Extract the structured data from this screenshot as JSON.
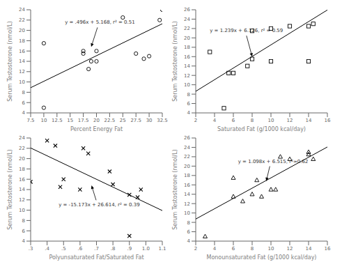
{
  "chart_data": [
    {
      "type": "scatter",
      "xlabel": "Percent Energy Fat",
      "ylabel": "Serum Testosterone (nmol/L)",
      "xlim": [
        7.5,
        32.5
      ],
      "ylim": [
        4,
        24
      ],
      "xticks": [
        7.5,
        10,
        12.5,
        15,
        17.5,
        20,
        22.5,
        25,
        27.5,
        30,
        32.5
      ],
      "yticks": [
        4,
        6,
        8,
        10,
        12,
        14,
        16,
        18,
        20,
        22,
        24
      ],
      "series": [
        {
          "type": "scatter",
          "marker": "circle",
          "color": "#000000",
          "x": [
            10,
            10,
            17.5,
            17.5,
            18.5,
            19,
            20,
            20,
            25,
            27.5,
            29,
            30,
            32,
            32.5
          ],
          "values": [
            17.5,
            5,
            15.5,
            16,
            12.5,
            14,
            14,
            16,
            22.5,
            15.5,
            14.5,
            15,
            22,
            24
          ]
        },
        {
          "type": "line",
          "line_style": "solid",
          "color": "#000000",
          "x": [
            7.5,
            32.5
          ],
          "values": [
            8.888,
            21.288
          ]
        }
      ],
      "annotations": [
        {
          "text": "y = .496x + 5.168, r² = 0.51",
          "x": 14.0,
          "y": 21.5,
          "arrow_x": 19.0,
          "arrow_y": 16.8
        }
      ]
    },
    {
      "type": "scatter",
      "xlabel": "Saturated Fat (g/1000 kcal/day)",
      "ylabel": "Serum Testosterone (nmol/L)",
      "xlim": [
        2,
        16
      ],
      "ylim": [
        4,
        26
      ],
      "xticks": [
        2,
        4,
        6,
        8,
        10,
        12,
        14,
        16
      ],
      "yticks": [
        4,
        6,
        8,
        10,
        12,
        14,
        16,
        18,
        20,
        22,
        24,
        26
      ],
      "series": [
        {
          "type": "scatter",
          "marker": "square",
          "color": "#000000",
          "x": [
            3.5,
            5,
            5.5,
            6,
            7.5,
            8,
            8,
            10,
            10,
            12,
            14,
            14,
            14.5
          ],
          "values": [
            17,
            5,
            12.5,
            12.5,
            14,
            15.5,
            21.5,
            15,
            22,
            22.5,
            15,
            22.5,
            23
          ]
        },
        {
          "type": "line",
          "line_style": "solid",
          "color": "#000000",
          "x": [
            2,
            16
          ],
          "values": [
            8.604,
            25.95
          ]
        }
      ],
      "annotations": [
        {
          "text": "y = 1.239x + 6.126, r² = 0.59",
          "x": 3.5,
          "y": 21.5,
          "arrow_x": 8.0,
          "arrow_y": 16.0
        }
      ]
    },
    {
      "type": "scatter",
      "xlabel": "Polyunsaturated Fat/Saturated Fat",
      "ylabel": "Serum Testosterone (nmol/L)",
      "xlim": [
        0.3,
        1.1
      ],
      "ylim": [
        4,
        24
      ],
      "xticks": [
        {
          "value": 0.3,
          "label": ".3"
        },
        {
          "value": 0.4,
          "label": ".4"
        },
        {
          "value": 0.5,
          "label": ".5"
        },
        {
          "value": 0.6,
          "label": ".6"
        },
        {
          "value": 0.7,
          "label": ".7"
        },
        {
          "value": 0.8,
          "label": ".8"
        },
        {
          "value": 0.9,
          "label": ".9"
        },
        {
          "value": 1.0,
          "label": "1.0"
        },
        1.1
      ],
      "yticks": [
        4,
        6,
        8,
        10,
        12,
        14,
        16,
        18,
        20,
        22,
        24
      ],
      "series": [
        {
          "type": "scatter",
          "marker": "x",
          "color": "#000000",
          "x": [
            0.3,
            0.4,
            0.45,
            0.48,
            0.5,
            0.6,
            0.62,
            0.65,
            0.78,
            0.8,
            0.9,
            0.95,
            0.97,
            0.9
          ],
          "values": [
            15.5,
            23.5,
            22.5,
            14.5,
            16,
            14,
            22,
            21,
            17.5,
            15,
            13,
            12.5,
            14,
            5
          ]
        },
        {
          "type": "line",
          "line_style": "solid",
          "color": "#000000",
          "x": [
            0.3,
            1.1
          ],
          "values": [
            22.0621,
            9.9237
          ]
        }
      ],
      "annotations": [
        {
          "text": "y = -15.173x + 26.614, r² = 0.39",
          "x": 0.47,
          "y": 11.0,
          "arrow_x": 0.67,
          "arrow_y": 14.8
        }
      ]
    },
    {
      "type": "scatter",
      "xlabel": "Monounsaturated Fat (g/1000 kcal/day)",
      "ylabel": "Serum Testosterone (nmol/L)",
      "xlim": [
        2,
        16
      ],
      "ylim": [
        4,
        26
      ],
      "xticks": [
        2,
        4,
        6,
        8,
        10,
        12,
        14,
        16
      ],
      "yticks": [
        4,
        6,
        8,
        10,
        12,
        14,
        16,
        18,
        20,
        22,
        24,
        26
      ],
      "series": [
        {
          "type": "scatter",
          "marker": "triangle",
          "color": "#000000",
          "x": [
            3,
            6,
            6,
            7,
            8,
            8.5,
            9,
            10,
            10.5,
            11,
            12,
            14,
            14,
            14.5
          ],
          "values": [
            5,
            17.5,
            13.5,
            12.5,
            14,
            17,
            13.5,
            15,
            15,
            22,
            21.5,
            22.5,
            23,
            21.5
          ]
        },
        {
          "type": "line",
          "line_style": "solid",
          "color": "#000000",
          "x": [
            2,
            16
          ],
          "values": [
            8.711,
            24.083
          ]
        }
      ],
      "annotations": [
        {
          "text": "y = 1.098x + 6.515, r²≈0.62",
          "x": 6.5,
          "y": 21.0,
          "arrow_x": 9.5,
          "arrow_y": 16.8
        }
      ]
    }
  ]
}
